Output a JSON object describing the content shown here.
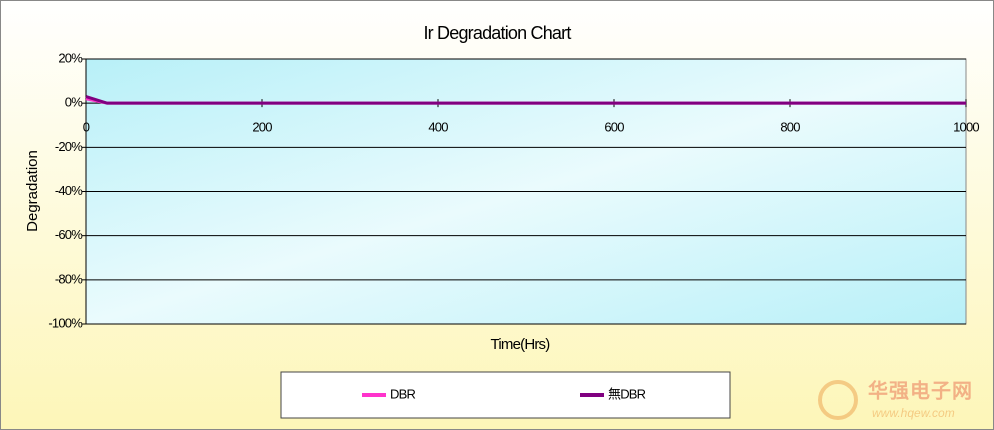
{
  "chart_data": {
    "type": "line",
    "title": "Ir Degradation Chart",
    "x_label": "Time(Hrs)",
    "y_label": "Degradation",
    "x": [
      0,
      24,
      168,
      500,
      1000
    ],
    "series": [
      {
        "name": "DBR",
        "color": "#ff33cc",
        "values": [
          2,
          0,
          0,
          0,
          0
        ]
      },
      {
        "name": "無DBR",
        "color": "#800080",
        "values": [
          3,
          0,
          0,
          0,
          0
        ]
      }
    ],
    "xlim": [
      0,
      1000
    ],
    "xticks": [
      0,
      200,
      400,
      600,
      800,
      1000
    ],
    "ylim": [
      -100,
      20
    ],
    "yticks": [
      {
        "value": 20,
        "label": "20%"
      },
      {
        "value": 0,
        "label": "0%"
      },
      {
        "value": -20,
        "label": "-20%"
      },
      {
        "value": -40,
        "label": "-40%"
      },
      {
        "value": -60,
        "label": "-60%"
      },
      {
        "value": -80,
        "label": "-80%"
      },
      {
        "value": -100,
        "label": "-100%"
      }
    ],
    "grid": true,
    "watermark": {
      "name": "华强电子网",
      "url": "www.hqew.com"
    }
  }
}
